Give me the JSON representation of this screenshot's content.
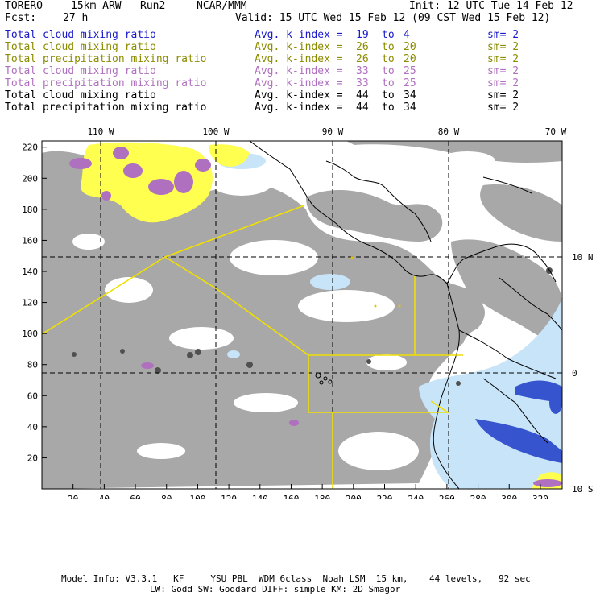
{
  "header": {
    "model": "TORERO",
    "resolution": "15km ARW",
    "run": "Run2",
    "org": "NCAR/MMM",
    "init": "Init: 12 UTC Tue 14 Feb 12",
    "fcst_label": "Fcst:",
    "fcst_value": "27 h",
    "valid": "Valid: 15 UTC Wed 15 Feb 12 (09 CST Wed 15 Feb 12)"
  },
  "legend": [
    {
      "field": "Total cloud mixing ratio",
      "avg": "Avg. k-index =",
      "k1": "19",
      "to": "to",
      "k2": "4",
      "sm": "sm= 2",
      "color": "#1a1acc"
    },
    {
      "field": "Total cloud mixing ratio",
      "avg": "Avg. k-index =",
      "k1": "26",
      "to": "to",
      "k2": "20",
      "sm": "sm= 2",
      "color": "#8c8c00"
    },
    {
      "field": "Total precipitation mixing ratio",
      "avg": "Avg. k-index =",
      "k1": "26",
      "to": "to",
      "k2": "20",
      "sm": "sm= 2",
      "color": "#8c8c00"
    },
    {
      "field": "Total cloud mixing ratio",
      "avg": "Avg. k-index =",
      "k1": "33",
      "to": "to",
      "k2": "25",
      "sm": "sm= 2",
      "color": "#b070c0"
    },
    {
      "field": "Total precipitation mixing ratio",
      "avg": "Avg. k-index =",
      "k1": "33",
      "to": "to",
      "k2": "25",
      "sm": "sm= 2",
      "color": "#b070c0"
    },
    {
      "field": "Total cloud mixing ratio",
      "avg": "Avg. k-index =",
      "k1": "44",
      "to": "to",
      "k2": "34",
      "sm": "sm= 2",
      "color": "#000000"
    },
    {
      "field": "Total precipitation mixing ratio",
      "avg": "Avg. k-index =",
      "k1": "44",
      "to": "to",
      "k2": "34",
      "sm": "sm= 2",
      "color": "#000000"
    }
  ],
  "map": {
    "top_lon_labels": [
      "110 W",
      "100 W",
      "90 W",
      "80 W",
      "70 W"
    ],
    "right_lat_labels": [
      "10 N",
      "0",
      "10 S"
    ],
    "bottom_ticks": [
      "20",
      "40",
      "60",
      "80",
      "100",
      "120",
      "140",
      "160",
      "180",
      "200",
      "220",
      "240",
      "260",
      "280",
      "300",
      "320"
    ],
    "left_ticks": [
      "220",
      "200",
      "180",
      "160",
      "140",
      "120",
      "100",
      "80",
      "60",
      "40",
      "20"
    ],
    "colors": {
      "cloud_gray": "#a8a8a8",
      "yellow": "#ffff50",
      "purple": "#b070c0",
      "light_blue": "#c8e4f8",
      "blue": "#1e3cc8",
      "boundary_yellow": "#f0e000"
    }
  },
  "footer": {
    "line1": "Model Info: V3.3.1   KF     YSU PBL  WDM 6class  Noah LSM  15 km,    44 levels,   92 sec",
    "line2": "LW: Godd SW: Goddard DIFF: simple KM: 2D Smagor"
  }
}
